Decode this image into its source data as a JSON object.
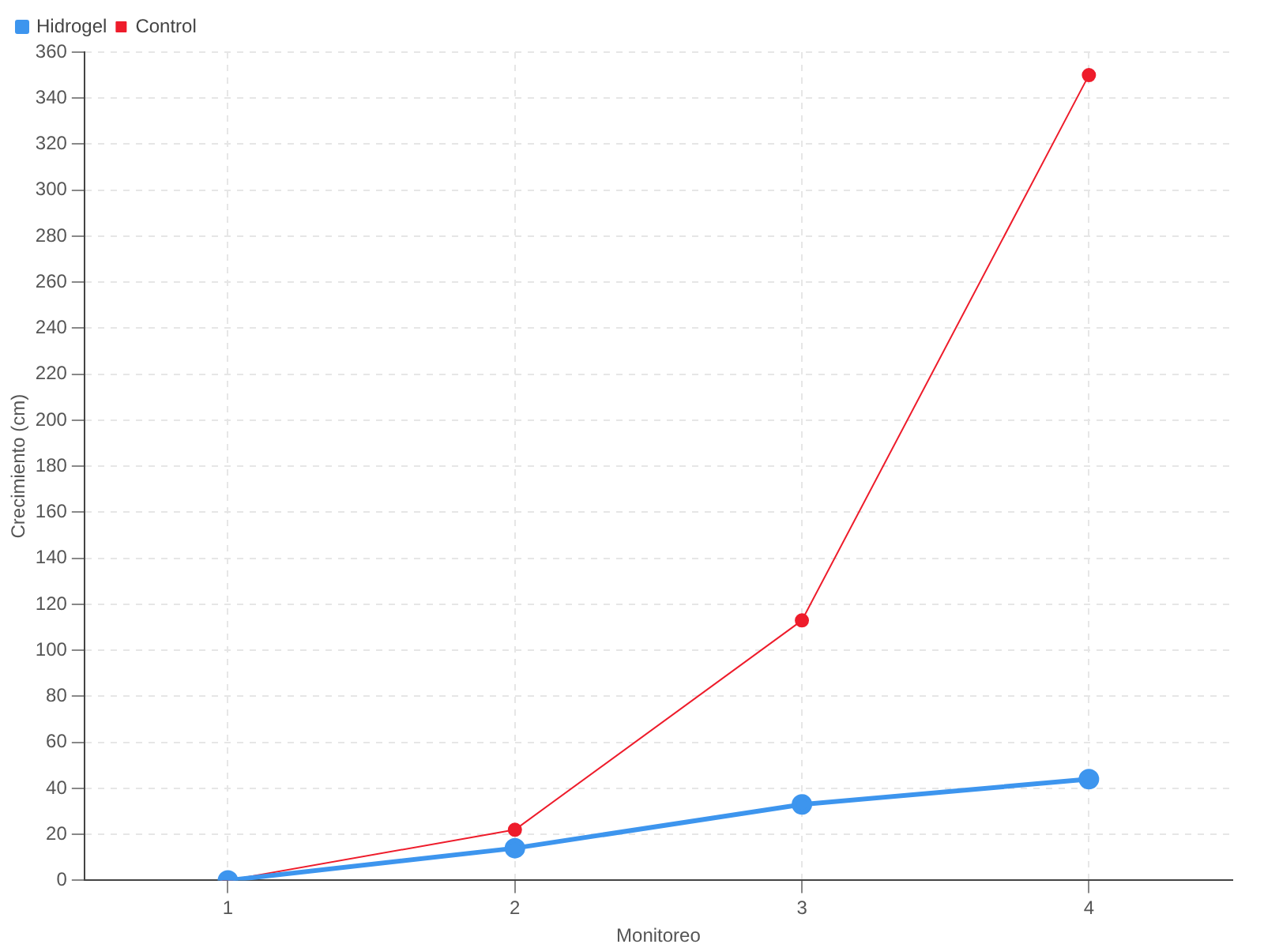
{
  "chart_data": {
    "type": "line",
    "xlabel": "Monitoreo",
    "ylabel": "Crecimiento (cm)",
    "categories": [
      "1",
      "2",
      "3",
      "4"
    ],
    "series": [
      {
        "name": "Hidrogel",
        "color": "#3d95ee",
        "values": [
          0,
          14,
          33,
          44
        ]
      },
      {
        "name": "Control",
        "color": "#ee1c2b",
        "values": [
          0,
          22,
          113,
          350
        ]
      }
    ],
    "ylim": [
      0,
      360
    ],
    "yticks": [
      0,
      20,
      40,
      60,
      80,
      100,
      120,
      140,
      160,
      180,
      200,
      220,
      240,
      260,
      280,
      300,
      320,
      340,
      360
    ],
    "grid": true,
    "legend": "top left",
    "marker": "circle",
    "line_style": "solid"
  }
}
